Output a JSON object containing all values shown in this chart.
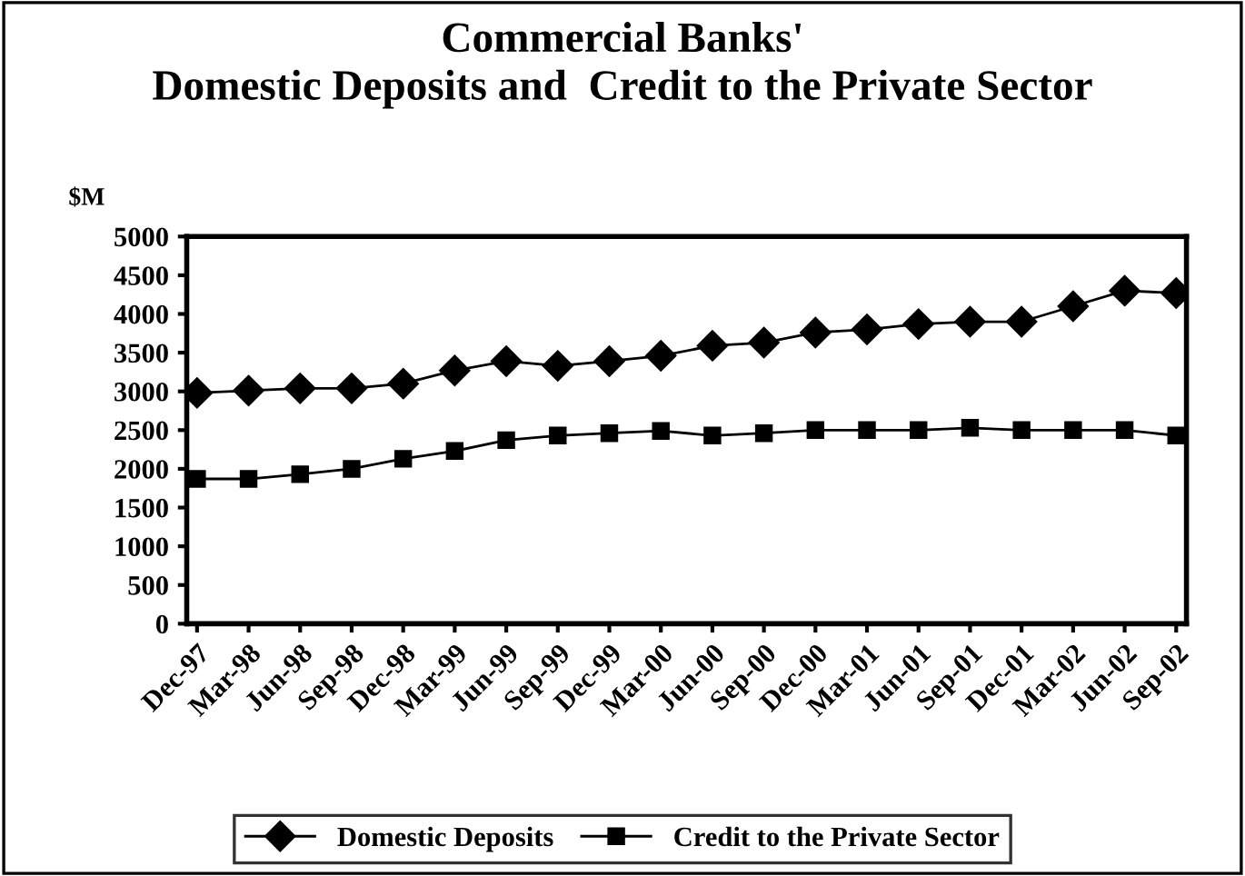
{
  "chart_data": {
    "type": "line",
    "title": "Commercial Banks'\nDomestic Deposits and  Credit to the Private Sector",
    "ylabel": "$M",
    "categories": [
      "Dec-97",
      "Mar-98",
      "Jun-98",
      "Sep-98",
      "Dec-98",
      "Mar-99",
      "Jun-99",
      "Sep-99",
      "Dec-99",
      "Mar-00",
      "Jun-00",
      "Sep-00",
      "Dec-00",
      "Mar-01",
      "Jun-01",
      "Sep-01",
      "Dec-01",
      "Mar-02",
      "Jun-02",
      "Sep-02"
    ],
    "series": [
      {
        "name": "Domestic Deposits",
        "color": "#000000",
        "marker": "diamond",
        "values": [
          2980,
          3010,
          3040,
          3040,
          3100,
          3270,
          3390,
          3330,
          3390,
          3460,
          3590,
          3630,
          3760,
          3800,
          3870,
          3900,
          3900,
          4100,
          4300,
          4270
        ]
      },
      {
        "name": "Credit to the Private Sector",
        "color": "#000000",
        "marker": "square",
        "values": [
          1870,
          1870,
          1930,
          2000,
          2130,
          2230,
          2370,
          2430,
          2460,
          2490,
          2430,
          2460,
          2500,
          2500,
          2500,
          2530,
          2500,
          2500,
          2500,
          2430
        ]
      }
    ],
    "ylim": [
      0,
      5000
    ],
    "yticks": [
      0,
      500,
      1000,
      1500,
      2000,
      2500,
      3000,
      3500,
      4000,
      4500,
      5000
    ],
    "grid": false,
    "legend": "bottom",
    "line_style": "solid"
  }
}
